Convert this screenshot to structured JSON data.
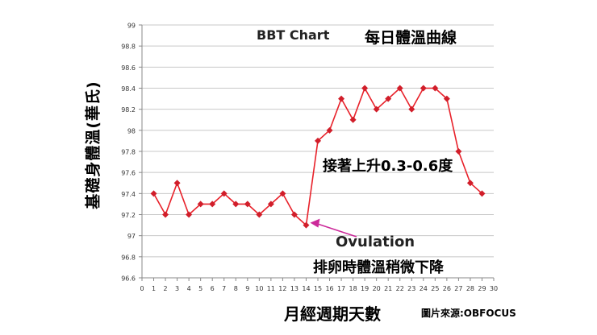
{
  "chart_data": {
    "type": "line",
    "title": "BBT Chart",
    "subtitle": "每日體溫曲線",
    "xlabel": "月經週期天數",
    "ylabel": "基礎身體溫(華氏)",
    "x": [
      1,
      2,
      3,
      4,
      5,
      6,
      7,
      8,
      9,
      10,
      11,
      12,
      13,
      14,
      15,
      16,
      17,
      18,
      19,
      20,
      21,
      22,
      23,
      24,
      25,
      26,
      27,
      28,
      29
    ],
    "series": [
      {
        "values": [
          97.4,
          97.2,
          97.5,
          97.2,
          97.3,
          97.3,
          97.4,
          97.3,
          97.3,
          97.2,
          97.3,
          97.4,
          97.2,
          97.1,
          97.9,
          98.0,
          98.3,
          98.1,
          98.4,
          98.2,
          98.3,
          98.4,
          98.2,
          98.4,
          98.4,
          98.3,
          97.8,
          97.5,
          97.4
        ]
      }
    ],
    "xlim": [
      0,
      30
    ],
    "ylim": [
      96.6,
      99
    ],
    "x_ticks": [
      "0",
      "1",
      "2",
      "3",
      "4",
      "5",
      "6",
      "7",
      "8",
      "9",
      "10",
      "11",
      "12",
      "13",
      "14",
      "15",
      "16",
      "17",
      "18",
      "19",
      "20",
      "21",
      "22",
      "23",
      "24",
      "25",
      "26",
      "27",
      "28",
      "29",
      "30"
    ],
    "y_ticks": [
      "96.6",
      "96.8",
      "97",
      "97.2",
      "97.4",
      "97.6",
      "97.8",
      "98",
      "98.2",
      "98.4",
      "98.6",
      "98.8",
      "99"
    ],
    "grid": "horizontal",
    "annotations": {
      "rise": "接著上升0.3-0.6度",
      "ovulation": "Ovulation",
      "drop": "排卵時體溫稍微下降"
    },
    "credit": "圖片來源:OBFOCUS",
    "colors": {
      "line": "#e8212a",
      "marker": "#d11e2a",
      "arrow": "#cc2a9a",
      "grid": "#c8c8c8"
    }
  }
}
